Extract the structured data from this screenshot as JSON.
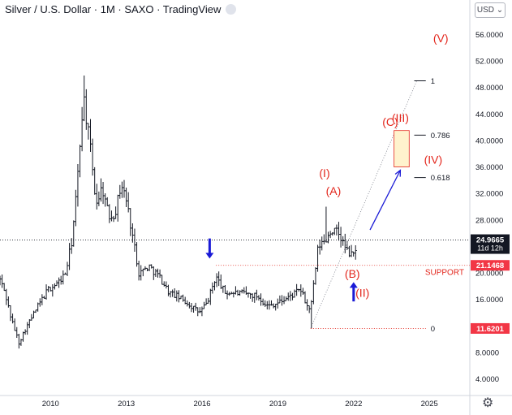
{
  "header": {
    "title": "Silver / U.S. Dollar · 1M · SAXO · TradingView"
  },
  "currency_selector": {
    "label": "USD",
    "icon": "chevron-down-icon"
  },
  "settings": {
    "icon": "gear-icon"
  },
  "chart_data": {
    "type": "candlestick",
    "y_ticks": [
      4,
      8,
      12,
      16,
      20,
      24,
      28,
      32,
      36,
      40,
      44,
      48,
      52,
      56
    ],
    "y_tick_labels": [
      "4.0000",
      "8.0000",
      "12.0000",
      "16.0000",
      "20.0000",
      "24.0000",
      "28.0000",
      "32.0000",
      "36.0000",
      "40.0000",
      "44.0000",
      "48.0000",
      "52.0000",
      "56.0000"
    ],
    "ylim": [
      1.5,
      58.5
    ],
    "x_ticks": [
      2010,
      2013,
      2016,
      2019,
      2022,
      2025
    ],
    "x_tick_labels": [
      "2010",
      "2013",
      "2016",
      "2019",
      "2022",
      "2025"
    ],
    "xlim": [
      2008.0,
      2026.6
    ],
    "price_anchors": [
      {
        "x": 2008.0,
        "y": 19.0
      },
      {
        "x": 2008.2,
        "y": 17.0
      },
      {
        "x": 2008.45,
        "y": 13.0
      },
      {
        "x": 2008.75,
        "y": 9.5
      },
      {
        "x": 2009.0,
        "y": 11.5
      },
      {
        "x": 2009.5,
        "y": 15.0
      },
      {
        "x": 2009.9,
        "y": 17.5
      },
      {
        "x": 2010.3,
        "y": 18.5
      },
      {
        "x": 2010.6,
        "y": 20.0
      },
      {
        "x": 2010.85,
        "y": 25.0
      },
      {
        "x": 2011.05,
        "y": 33.0
      },
      {
        "x": 2011.3,
        "y": 47.0
      },
      {
        "x": 2011.6,
        "y": 38.0
      },
      {
        "x": 2011.8,
        "y": 30.5
      },
      {
        "x": 2012.05,
        "y": 33.0
      },
      {
        "x": 2012.3,
        "y": 28.5
      },
      {
        "x": 2012.55,
        "y": 29.0
      },
      {
        "x": 2012.8,
        "y": 33.5
      },
      {
        "x": 2013.0,
        "y": 31.0
      },
      {
        "x": 2013.3,
        "y": 24.5
      },
      {
        "x": 2013.5,
        "y": 20.0
      },
      {
        "x": 2013.9,
        "y": 21.0
      },
      {
        "x": 2014.3,
        "y": 19.5
      },
      {
        "x": 2014.7,
        "y": 17.0
      },
      {
        "x": 2015.0,
        "y": 16.5
      },
      {
        "x": 2015.4,
        "y": 15.5
      },
      {
        "x": 2015.9,
        "y": 14.0
      },
      {
        "x": 2016.2,
        "y": 15.5
      },
      {
        "x": 2016.55,
        "y": 19.5
      },
      {
        "x": 2016.9,
        "y": 17.0
      },
      {
        "x": 2017.3,
        "y": 17.0
      },
      {
        "x": 2017.8,
        "y": 16.8
      },
      {
        "x": 2018.2,
        "y": 16.5
      },
      {
        "x": 2018.6,
        "y": 15.0
      },
      {
        "x": 2019.0,
        "y": 15.5
      },
      {
        "x": 2019.5,
        "y": 16.5
      },
      {
        "x": 2019.9,
        "y": 17.5
      },
      {
        "x": 2020.15,
        "y": 15.0
      },
      {
        "x": 2020.3,
        "y": 14.5
      },
      {
        "x": 2020.6,
        "y": 24.0
      },
      {
        "x": 2020.9,
        "y": 25.0
      },
      {
        "x": 2021.1,
        "y": 26.5
      },
      {
        "x": 2021.4,
        "y": 26.0
      },
      {
        "x": 2021.7,
        "y": 23.5
      },
      {
        "x": 2021.95,
        "y": 22.5
      },
      {
        "x": 2022.15,
        "y": 24.5
      }
    ],
    "candle_step": 0.0833,
    "current_price": {
      "value": 24.9665,
      "label": "24.9665",
      "sublabel": "11d 12h"
    },
    "price_labels": [
      {
        "value": 21.1468,
        "label": "21.1468",
        "color": "#f23645"
      },
      {
        "value": 11.6201,
        "label": "11.6201",
        "color": "#f23645"
      }
    ],
    "support": {
      "y": 21.1468,
      "x_start": 2016.55,
      "x_end": 2026.6,
      "label": "SUPPORT"
    },
    "fib_levels": [
      {
        "ratio_label": "1",
        "y": 49.0
      },
      {
        "ratio_label": "0.786",
        "y": 40.8
      },
      {
        "ratio_label": "0.618",
        "y": 34.4
      },
      {
        "ratio_label": "0",
        "y": 11.6201
      }
    ],
    "fib_line": {
      "x1": 2020.3,
      "y1": 11.6201,
      "x2": 2024.5,
      "y2": 49.0,
      "x_lab": 2025.05
    },
    "wave_labels": [
      {
        "text": "(V)",
        "x": 2025.45,
        "y": 54.8
      },
      {
        "text": "(III)",
        "x": 2023.85,
        "y": 42.8
      },
      {
        "text": "(C)",
        "x": 2023.45,
        "y": 42.2
      },
      {
        "text": "(IV)",
        "x": 2025.15,
        "y": 36.5
      },
      {
        "text": "(I)",
        "x": 2020.85,
        "y": 34.5
      },
      {
        "text": "(A)",
        "x": 2021.2,
        "y": 31.8
      },
      {
        "text": "(B)",
        "x": 2021.95,
        "y": 19.3
      },
      {
        "text": "(II)",
        "x": 2022.35,
        "y": 16.4
      }
    ],
    "target_box": {
      "x1": 2023.6,
      "x2": 2024.2,
      "y1": 36.0,
      "y2": 41.5
    },
    "projection_arrow": {
      "x1": 2022.65,
      "y1": 26.5,
      "x2": 2023.85,
      "y2": 35.5
    },
    "down_arrow": {
      "x": 2016.3,
      "y_top": 25.2,
      "y_bottom": 22.3
    },
    "up_arrow": {
      "x": 2022.0,
      "y_top": 18.5,
      "y_bottom": 15.7
    },
    "colors": {
      "candle": "#131722",
      "wave": "#e3261c",
      "arrow": "#1a1ad6",
      "box_fill": "#fff3cd",
      "box_stroke": "#e3261c",
      "axis_text": "#131722"
    }
  }
}
